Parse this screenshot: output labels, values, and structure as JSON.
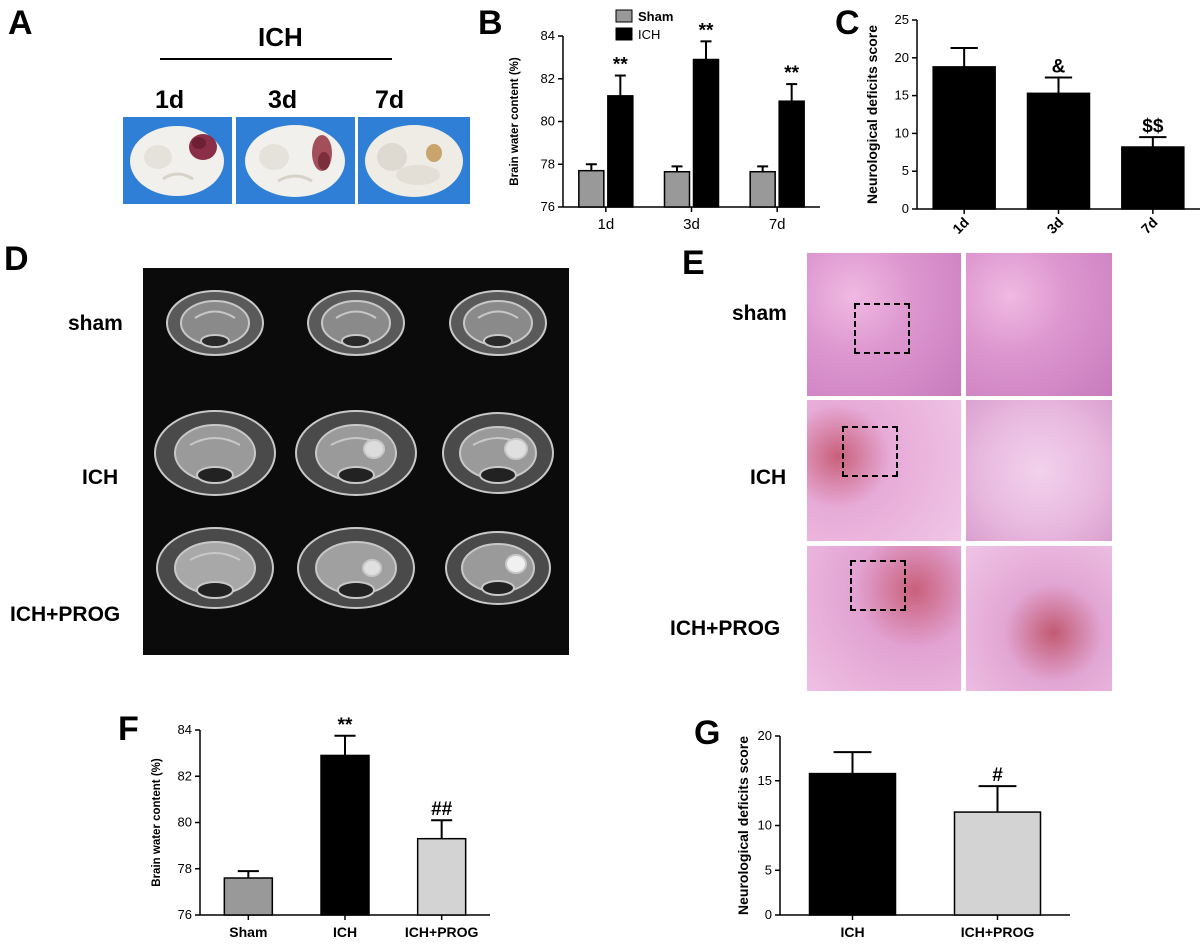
{
  "panels": {
    "A": {
      "letter": "A",
      "group_label": "ICH",
      "timepoints": [
        "1d",
        "3d",
        "7d"
      ]
    },
    "D": {
      "letter": "D",
      "rows": [
        "sham",
        "ICH",
        "ICH+PROG"
      ]
    },
    "E": {
      "letter": "E",
      "rows": [
        "sham",
        "ICH",
        "ICH+PROG"
      ]
    }
  },
  "colors": {
    "sham": "#999999",
    "ich": "#000000",
    "ich_prog": "#d3d3d3"
  },
  "chart_data": [
    {
      "panel": "B",
      "type": "bar",
      "categories": [
        "1d",
        "3d",
        "7d"
      ],
      "series": [
        {
          "name": "Sham",
          "values": [
            77.7,
            77.65,
            77.65
          ],
          "errors": [
            0.3,
            0.25,
            0.25
          ],
          "annotations": [
            "",
            "",
            ""
          ]
        },
        {
          "name": "ICH",
          "values": [
            81.2,
            82.9,
            80.95
          ],
          "errors": [
            0.95,
            0.85,
            0.8
          ],
          "annotations": [
            "**",
            "**",
            "**"
          ]
        }
      ],
      "ylabel": "Brain water content (%)",
      "ylim": [
        76,
        84
      ],
      "yticks": [
        76,
        78,
        80,
        82,
        84
      ],
      "legend": "top-left"
    },
    {
      "panel": "C",
      "type": "bar",
      "categories": [
        "1d",
        "3d",
        "7d"
      ],
      "values": [
        18.8,
        15.3,
        8.2
      ],
      "errors": [
        2.5,
        2.1,
        1.3
      ],
      "annotations": [
        "",
        "&",
        "$$"
      ],
      "ylabel": "Neurological deficits score",
      "ylim": [
        0,
        25
      ],
      "yticks": [
        0,
        5,
        10,
        15,
        20,
        25
      ]
    },
    {
      "panel": "F",
      "type": "bar",
      "categories": [
        "Sham",
        "ICH",
        "ICH+PROG"
      ],
      "values": [
        77.6,
        82.9,
        79.3
      ],
      "errors": [
        0.3,
        0.85,
        0.8
      ],
      "annotations": [
        "",
        "**",
        "##"
      ],
      "ylabel": "Brain water content (%)",
      "ylim": [
        76,
        84
      ],
      "yticks": [
        76,
        78,
        80,
        82,
        84
      ]
    },
    {
      "panel": "G",
      "type": "bar",
      "categories": [
        "ICH",
        "ICH+PROG"
      ],
      "values": [
        15.8,
        11.5
      ],
      "errors": [
        2.4,
        2.9
      ],
      "annotations": [
        "",
        "#"
      ],
      "ylabel": "Neurological deficits score",
      "ylim": [
        0,
        20
      ],
      "yticks": [
        0,
        5,
        10,
        15,
        20
      ]
    }
  ]
}
